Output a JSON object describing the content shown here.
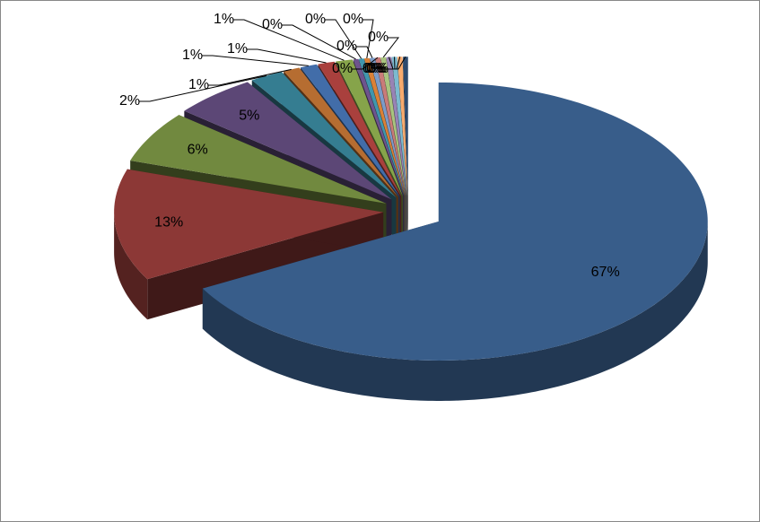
{
  "chart_data": {
    "type": "pie3d",
    "values": [
      67,
      13,
      6,
      5,
      2,
      1,
      1,
      1,
      1,
      0.3,
      0.3,
      0.3,
      0.3,
      0.3,
      0.3,
      0.3,
      0.3,
      0.3,
      0.3
    ],
    "value_labels": [
      "67%",
      "13%",
      "6%",
      "5%",
      "2%",
      "1%",
      "1%",
      "1%",
      "1%",
      "0%",
      "0%",
      "0%",
      "0%",
      "0%",
      "0%",
      "0%",
      "0%",
      "0%",
      "0%"
    ],
    "colors": [
      "#385d8a",
      "#8c3836",
      "#71893f",
      "#5c4776",
      "#357d91",
      "#b66d31",
      "#426da9",
      "#a9403d",
      "#86a44a",
      "#6e548d",
      "#4096ae",
      "#da8137",
      "#7c9cc8",
      "#c97b79",
      "#a9c47f",
      "#9883b5",
      "#7cbad0",
      "#f7aa6d",
      "#2c4a6e"
    ]
  }
}
